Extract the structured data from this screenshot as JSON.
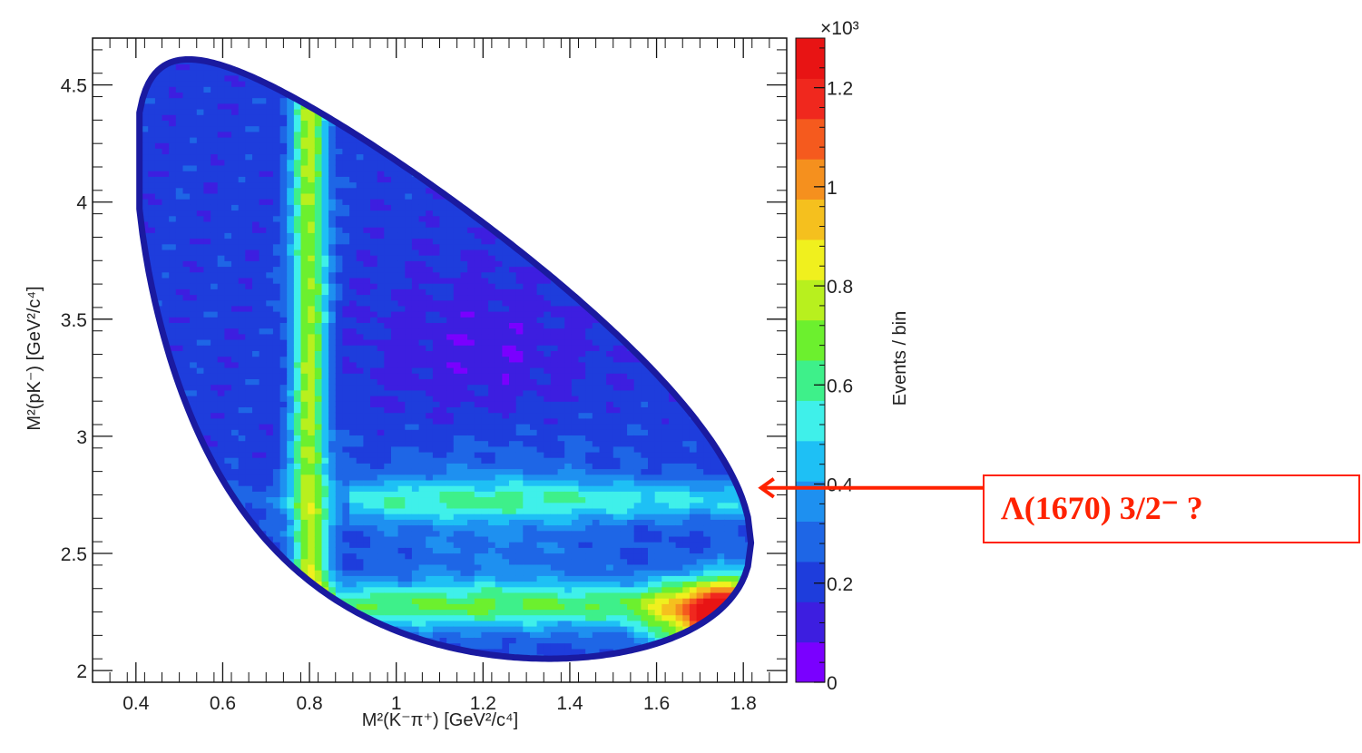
{
  "chart_data": {
    "type": "heatmap",
    "xlabel": "M²(K⁻π⁺) [GeV²/c⁴]",
    "ylabel": "M²(pK⁻) [GeV²/c⁴]",
    "xlim": [
      0.3,
      1.9
    ],
    "ylim": [
      1.95,
      4.7
    ],
    "x_ticks": [
      "0.4",
      "0.6",
      "0.8",
      "1",
      "1.2",
      "1.4",
      "1.6",
      "1.8"
    ],
    "y_ticks": [
      "2",
      "2.5",
      "3",
      "3.5",
      "4",
      "4.5"
    ],
    "z_label": "Events / bin",
    "z_multiplier": "×10³",
    "z_range": [
      0,
      1.3
    ],
    "z_ticks": [
      "0",
      "0.2",
      "0.4",
      "0.6",
      "0.8",
      "1",
      "1.2"
    ],
    "colorscale": [
      "#7a00ff",
      "#3d1ee0",
      "#1e3ddc",
      "#1e66e6",
      "#1e90f0",
      "#1ec0f5",
      "#3ff0ea",
      "#3ef08a",
      "#6cf02e",
      "#b8f01e",
      "#f0f01e",
      "#f5c01e",
      "#f5901e",
      "#f55a1e",
      "#f0281e",
      "#e81414"
    ],
    "boundary_color": "#1a1aa0",
    "bands": [
      {
        "axis": "x",
        "value": 0.8,
        "peak_z": 0.8
      },
      {
        "axis": "y",
        "value": 2.32,
        "peak_z": 0.7
      },
      {
        "axis": "y",
        "value": 2.78,
        "peak_z": 0.5
      }
    ],
    "hot_region": {
      "x": 1.78,
      "y": 2.2,
      "peak_z": 1.25
    },
    "grid": false,
    "legend": "none"
  },
  "annotation": {
    "text": "Λ(1670) 3/2⁻  ?",
    "color": "#ff2200",
    "target": {
      "x": 1.82,
      "y": 2.78
    }
  }
}
